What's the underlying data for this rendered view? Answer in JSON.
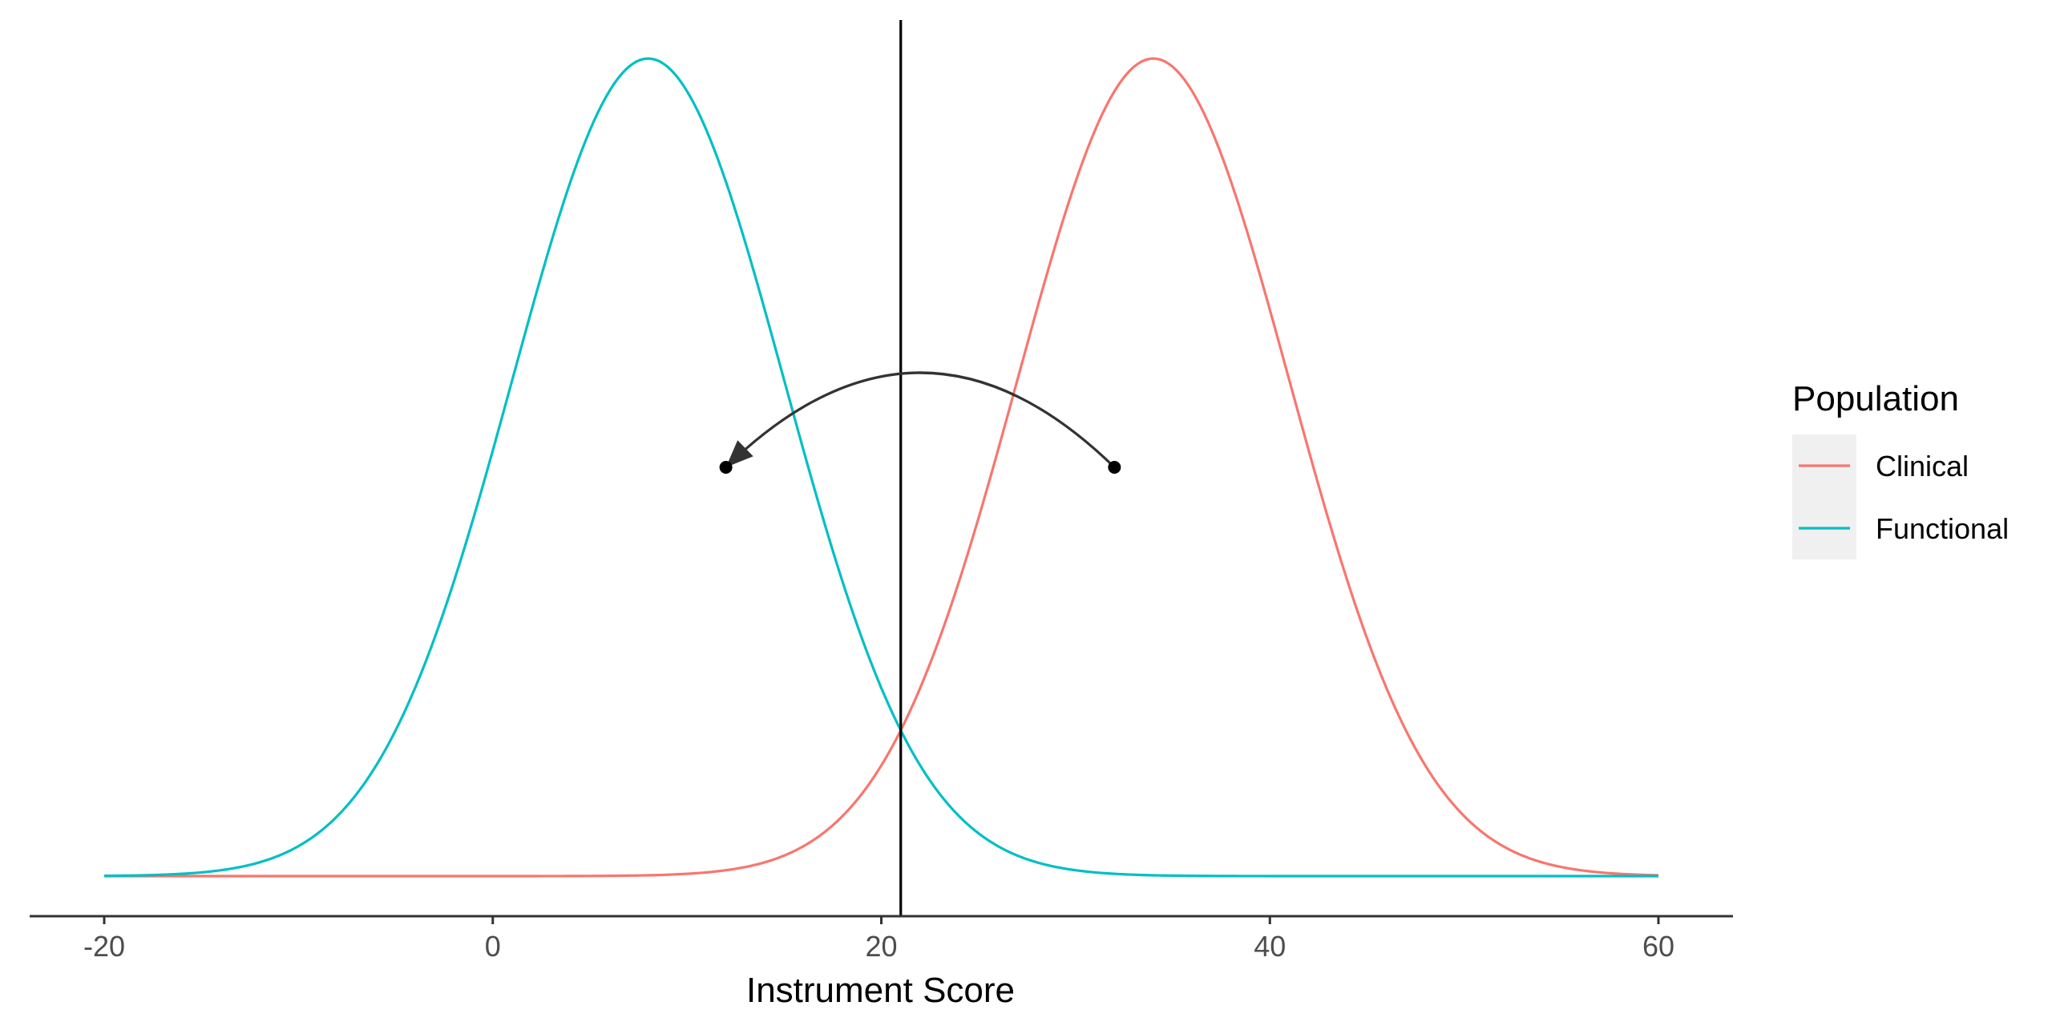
{
  "chart_data": {
    "type": "line",
    "xlabel": "Instrument Score",
    "ylabel": "",
    "title": "",
    "xlim": [
      -20,
      60
    ],
    "x_ticks": [
      "-20",
      "0",
      "20",
      "40",
      "60"
    ],
    "grid": false,
    "legend": {
      "title": "Population",
      "position": "right"
    },
    "series": [
      {
        "name": "Clinical",
        "color": "#F8766D",
        "mean": 34,
        "sd": 7
      },
      {
        "name": "Functional",
        "color": "#00BFC4",
        "mean": 8,
        "sd": 7
      }
    ],
    "cutoff_line": {
      "x": 21,
      "color": "#000000"
    },
    "annotation_arrow": {
      "from": {
        "x": 32,
        "y_fraction": 0.5
      },
      "to": {
        "x": 12,
        "y_fraction": 0.5
      },
      "color": "#333333"
    }
  }
}
